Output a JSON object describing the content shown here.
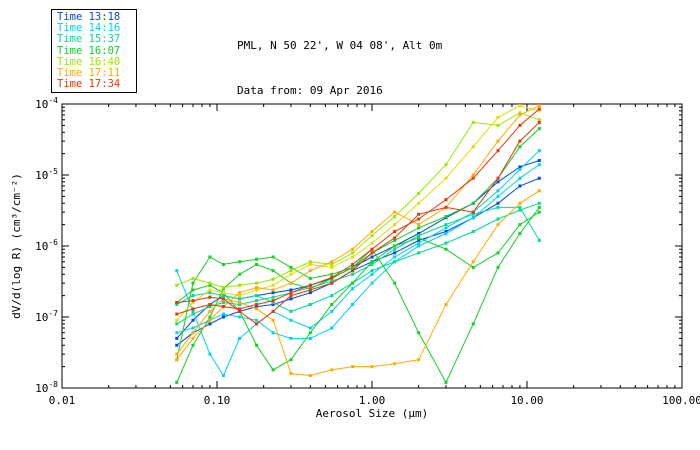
{
  "header": {
    "line1": "PML, N 50 22', W 04 08', Alt 0m",
    "line2": "Data from: 09 Apr 2016"
  },
  "legend": {
    "items": [
      {
        "label": "Time 13:18",
        "color": "#0048e8"
      },
      {
        "label": "Time 14:16",
        "color": "#00d2f0"
      },
      {
        "label": "Time 15:37",
        "color": "#00dc96"
      },
      {
        "label": "Time 16:07",
        "color": "#12d024"
      },
      {
        "label": "Time 16:40",
        "color": "#9ce600"
      },
      {
        "label": "Time 17:11",
        "color": "#ffaa00"
      },
      {
        "label": "Time 17:34",
        "color": "#e83800"
      }
    ]
  },
  "chart_data": {
    "type": "line",
    "x_scale": "log",
    "y_scale": "log",
    "xlim": [
      0.01,
      100
    ],
    "ylim": [
      1e-08,
      0.0001
    ],
    "grid": false,
    "legend_position": "top-left-outside",
    "xlabel": "Aerosol Size (μm)",
    "ylabel": "dV/d(log R) (cm³/cm⁻²)",
    "x_ticks": [
      {
        "value": 0.01,
        "label": "0.01"
      },
      {
        "value": 0.1,
        "label": "0.10"
      },
      {
        "value": 1.0,
        "label": "1.00"
      },
      {
        "value": 10.0,
        "label": "10.00"
      },
      {
        "value": 100.0,
        "label": "100.00"
      }
    ],
    "y_ticks": [
      {
        "value": 0.0001,
        "base": "10",
        "exp": "-4"
      },
      {
        "value": 1e-05,
        "base": "10",
        "exp": "-5"
      },
      {
        "value": 1e-06,
        "base": "10",
        "exp": "-6"
      },
      {
        "value": 1e-07,
        "base": "10",
        "exp": "-7"
      },
      {
        "value": 1e-08,
        "base": "10",
        "exp": "-8"
      }
    ],
    "x": [
      0.055,
      0.07,
      0.09,
      0.11,
      0.14,
      0.18,
      0.23,
      0.3,
      0.4,
      0.55,
      0.75,
      1.0,
      1.4,
      2.0,
      3.0,
      4.5,
      6.5,
      9.0,
      12.0
    ],
    "series": [
      {
        "name": "Time 13:18",
        "color": "#0048e8",
        "lines": [
          {
            "values": [
              4e-08,
              6e-08,
              8e-08,
              1e-07,
              1.2e-07,
              1.4e-07,
              1.5e-07,
              1.8e-07,
              2.2e-07,
              3e-07,
              4.5e-07,
              6e-07,
              8e-07,
              1.2e-06,
              1.6e-06,
              2.5e-06,
              4e-06,
              7e-06,
              9e-06
            ]
          },
          {
            "values": [
              5e-08,
              9e-08,
              1.5e-07,
              2e-07,
              1.8e-07,
              2e-07,
              2.2e-07,
              2.4e-07,
              2.8e-07,
              3.5e-07,
              5e-07,
              7e-07,
              1e-06,
              1.5e-06,
              2.5e-06,
              4e-06,
              8e-06,
              1.3e-05,
              1.6e-05
            ]
          }
        ]
      },
      {
        "name": "Time 14:16",
        "color": "#00d2f0",
        "lines": [
          {
            "values": [
              4.5e-07,
              1.2e-07,
              3e-08,
              1.5e-08,
              5e-08,
              8e-08,
              1.2e-07,
              9e-08,
              7e-08,
              1.2e-07,
              2.5e-07,
              4e-07,
              7e-07,
              1.1e-06,
              1.8e-06,
              3e-06,
              6e-06,
              1.2e-05,
              2.2e-05
            ]
          },
          {
            "values": [
              6e-08,
              7e-08,
              9e-08,
              1.1e-07,
              1e-07,
              9e-08,
              6e-08,
              5e-08,
              5e-08,
              7e-08,
              1.5e-07,
              3e-07,
              6e-07,
              1e-06,
              1.5e-06,
              2.5e-06,
              5e-06,
              9e-06,
              1.4e-05
            ]
          }
        ]
      },
      {
        "name": "Time 15:37",
        "color": "#00dc96",
        "lines": [
          {
            "values": [
              1.5e-07,
              2e-07,
              2.2e-07,
              2e-07,
              1.8e-07,
              2e-07,
              1.6e-07,
              1.2e-07,
              1.5e-07,
              2e-07,
              3e-07,
              4.5e-07,
              6e-07,
              8e-07,
              1.1e-06,
              1.6e-06,
              2.4e-06,
              3.2e-06,
              4e-06
            ]
          },
          {
            "values": [
              8e-08,
              1.1e-07,
              1.4e-07,
              1.6e-07,
              1.5e-07,
              1.7e-07,
              1.9e-07,
              2.2e-07,
              2.6e-07,
              3.2e-07,
              4e-07,
              5.5e-07,
              9e-07,
              1.4e-06,
              2e-06,
              2.8e-06,
              3.5e-06,
              3.5e-06,
              1.2e-06
            ]
          }
        ]
      },
      {
        "name": "Time 16:07",
        "color": "#12d024",
        "lines": [
          {
            "values": [
              2.5e-08,
              3e-07,
              7e-07,
              5.5e-07,
              6e-07,
              6.5e-07,
              7e-07,
              5e-07,
              3.5e-07,
              4e-07,
              5e-07,
              9e-07,
              3e-07,
              6e-08,
              1.2e-08,
              8e-08,
              5e-07,
              1.5e-06,
              3.5e-06
            ]
          },
          {
            "values": [
              1.2e-08,
              4e-08,
              1e-07,
              2.5e-07,
              4e-07,
              5.5e-07,
              4.5e-07,
              3e-07,
              2.5e-07,
              3.5e-07,
              5e-07,
              8e-07,
              1.2e-06,
              1.8e-06,
              2.6e-06,
              4e-06,
              9e-06,
              2.5e-05,
              4.5e-05
            ]
          },
          {
            "values": [
              1.6e-07,
              2.4e-07,
              2.8e-07,
              2.2e-07,
              1.2e-07,
              4e-08,
              1.8e-08,
              2.5e-08,
              6e-08,
              1.5e-07,
              3e-07,
              6e-07,
              1e-06,
              1.3e-06,
              9e-07,
              5e-07,
              8e-07,
              2e-06,
              3e-06
            ]
          }
        ]
      },
      {
        "name": "Time 16:40",
        "color": "#9ce600",
        "lines": [
          {
            "color": "#dede00",
            "values": [
              9e-08,
              1.6e-07,
              2.4e-07,
              2.2e-07,
              2e-07,
              2.4e-07,
              2.8e-07,
              4e-07,
              5.5e-07,
              5e-07,
              7e-07,
              1.1e-06,
              2e-06,
              4e-06,
              9e-06,
              2.5e-05,
              6.5e-05,
              9.5e-05,
              8e-05
            ]
          },
          {
            "values": [
              2.8e-07,
              3.5e-07,
              3e-07,
              2.6e-07,
              2.8e-07,
              3e-07,
              3.4e-07,
              4.5e-07,
              6e-07,
              5.5e-07,
              8e-07,
              1.4e-06,
              2.6e-06,
              5.5e-06,
              1.4e-05,
              5.5e-05,
              5e-05,
              7.5e-05,
              6e-05
            ]
          }
        ]
      },
      {
        "name": "Time 17:11",
        "color": "#ffaa00",
        "lines": [
          {
            "values": [
              2.5e-08,
              5e-08,
              9e-08,
              1.4e-07,
              2.2e-07,
              2.6e-07,
              2.4e-07,
              3e-07,
              4.5e-07,
              6e-07,
              9e-07,
              1.6e-06,
              3e-06,
              2e-06,
              3.5e-06,
              1e-05,
              3e-05,
              7e-05,
              9.5e-05
            ]
          },
          {
            "values": [
              3e-08,
              6e-08,
              1.2e-07,
              1.8e-07,
              1.6e-07,
              1.3e-07,
              9e-08,
              1.6e-08,
              1.5e-08,
              1.8e-08,
              2e-08,
              2e-08,
              2.2e-08,
              2.5e-08,
              1.5e-07,
              6e-07,
              2e-06,
              4e-06,
              6e-06
            ]
          }
        ]
      },
      {
        "name": "Time 17:34",
        "color": "#e83800",
        "lines": [
          {
            "values": [
              1.6e-07,
              1.7e-07,
              1.9e-07,
              1.8e-07,
              1.2e-07,
              8e-08,
              1.2e-07,
              2e-07,
              2.4e-07,
              3e-07,
              4.5e-07,
              8e-07,
              1.3e-06,
              2.8e-06,
              3.5e-06,
              3e-06,
              9e-06,
              3e-05,
              5.5e-05
            ]
          },
          {
            "values": [
              1.1e-07,
              1.3e-07,
              1.5e-07,
              1.4e-07,
              1.3e-07,
              1.5e-07,
              1.7e-07,
              2.2e-07,
              2.8e-07,
              3.6e-07,
              5.5e-07,
              9e-07,
              1.6e-06,
              2.4e-06,
              4.5e-06,
              9e-06,
              2.2e-05,
              5e-05,
              8.5e-05
            ]
          }
        ]
      }
    ]
  }
}
